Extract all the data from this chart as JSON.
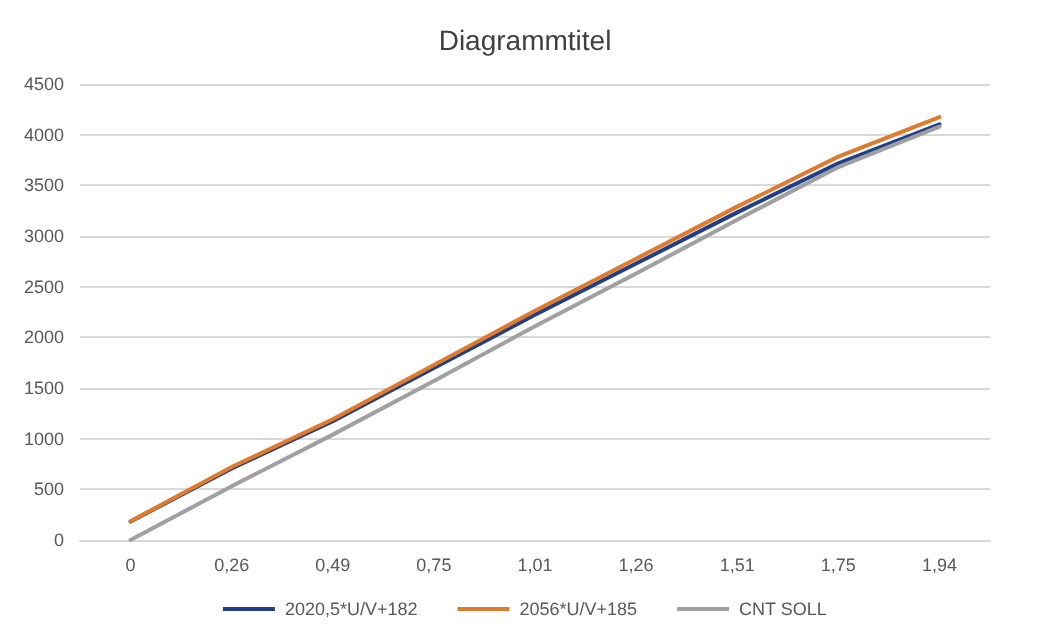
{
  "chart_data": {
    "type": "line",
    "title": "Diagrammtitel",
    "categories": [
      "0",
      "0,26",
      "0,49",
      "0,75",
      "1,01",
      "1,26",
      "1,51",
      "1,75",
      "1,94"
    ],
    "series": [
      {
        "name": "2020,5*U/V+182",
        "color": "#203f8a",
        "values": [
          182,
          707,
          1172,
          1697,
          2223,
          2728,
          3233,
          3718,
          4102
        ]
      },
      {
        "name": "2056*U/V+185",
        "color": "#e07b2e",
        "values": [
          185,
          720,
          1192,
          1727,
          2262,
          2776,
          3290,
          3783,
          4174
        ]
      },
      {
        "name": "CNT SOLL",
        "color": "#a0a0a0",
        "values": [
          0,
          530,
          1040,
          1570,
          2110,
          2630,
          3160,
          3680,
          4080
        ]
      }
    ],
    "ylim": [
      0,
      4500
    ],
    "yticks": [
      0,
      500,
      1000,
      1500,
      2000,
      2500,
      3000,
      3500,
      4000,
      4500
    ],
    "grid": "y",
    "legend": "bottom",
    "marker": "none",
    "line_style": "solid"
  }
}
